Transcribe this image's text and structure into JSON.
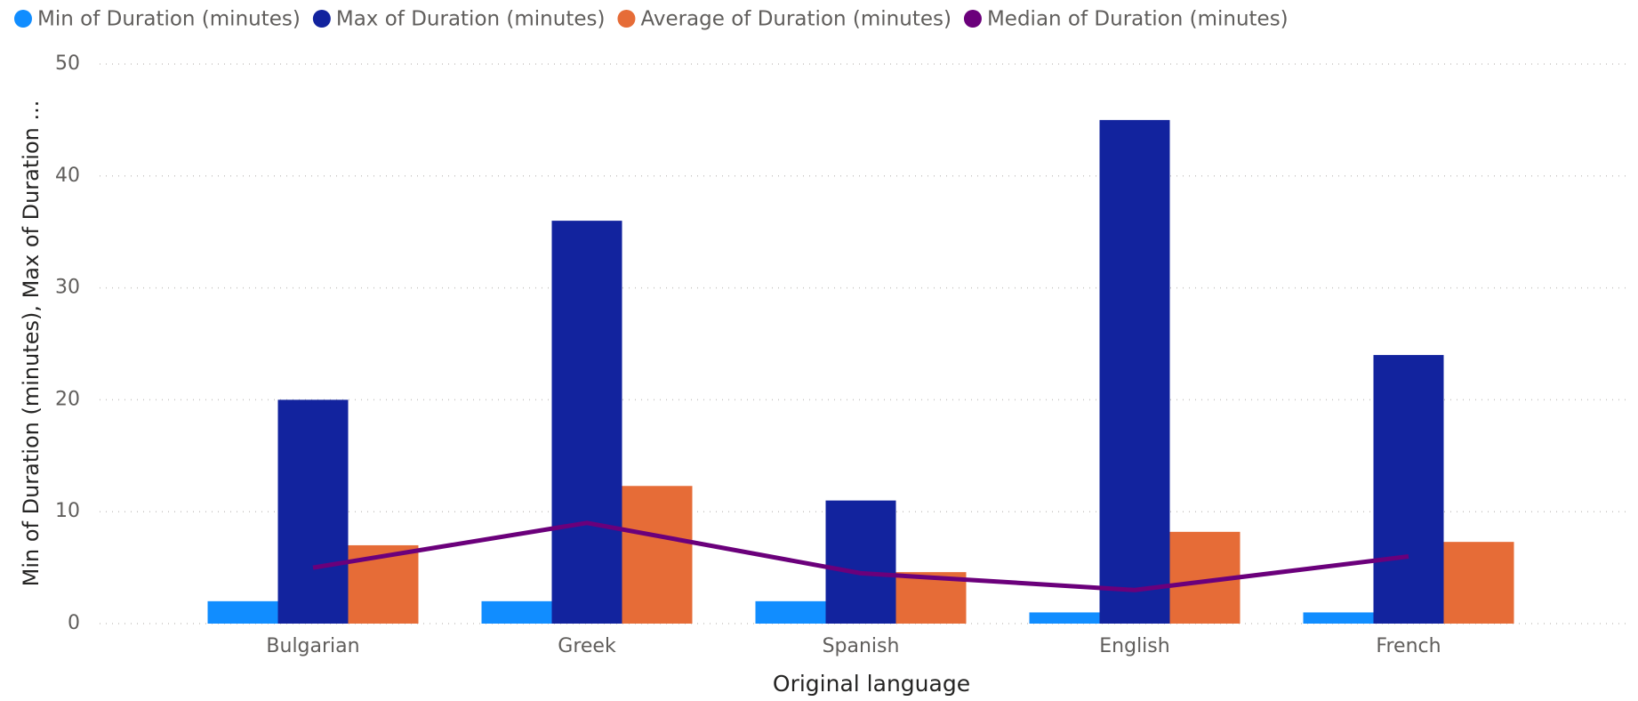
{
  "chart_data": {
    "type": "combo",
    "x_label": "Original language",
    "y_label": "Min of Duration (minutes), Max of Duration ...",
    "categories": [
      "Bulgarian",
      "Greek",
      "Spanish",
      "English",
      "French"
    ],
    "series": [
      {
        "name": "Min of Duration (minutes)",
        "type": "bar",
        "color": "#118dff",
        "values": [
          2,
          2,
          2,
          1,
          1
        ]
      },
      {
        "name": "Max of Duration (minutes)",
        "type": "bar",
        "color": "#12239e",
        "values": [
          20,
          36,
          11,
          45,
          24
        ]
      },
      {
        "name": "Average of Duration (minutes)",
        "type": "bar",
        "color": "#e66c37",
        "values": [
          7,
          12.3,
          4.6,
          8.2,
          7.3
        ]
      },
      {
        "name": "Median of Duration (minutes)",
        "type": "line",
        "color": "#6b007b",
        "values": [
          5,
          9,
          4.5,
          3,
          6
        ]
      }
    ],
    "ylim": [
      0,
      50
    ],
    "yticks": [
      0,
      10,
      20,
      30,
      40,
      50
    ],
    "grid": true,
    "legend": "top-left"
  }
}
